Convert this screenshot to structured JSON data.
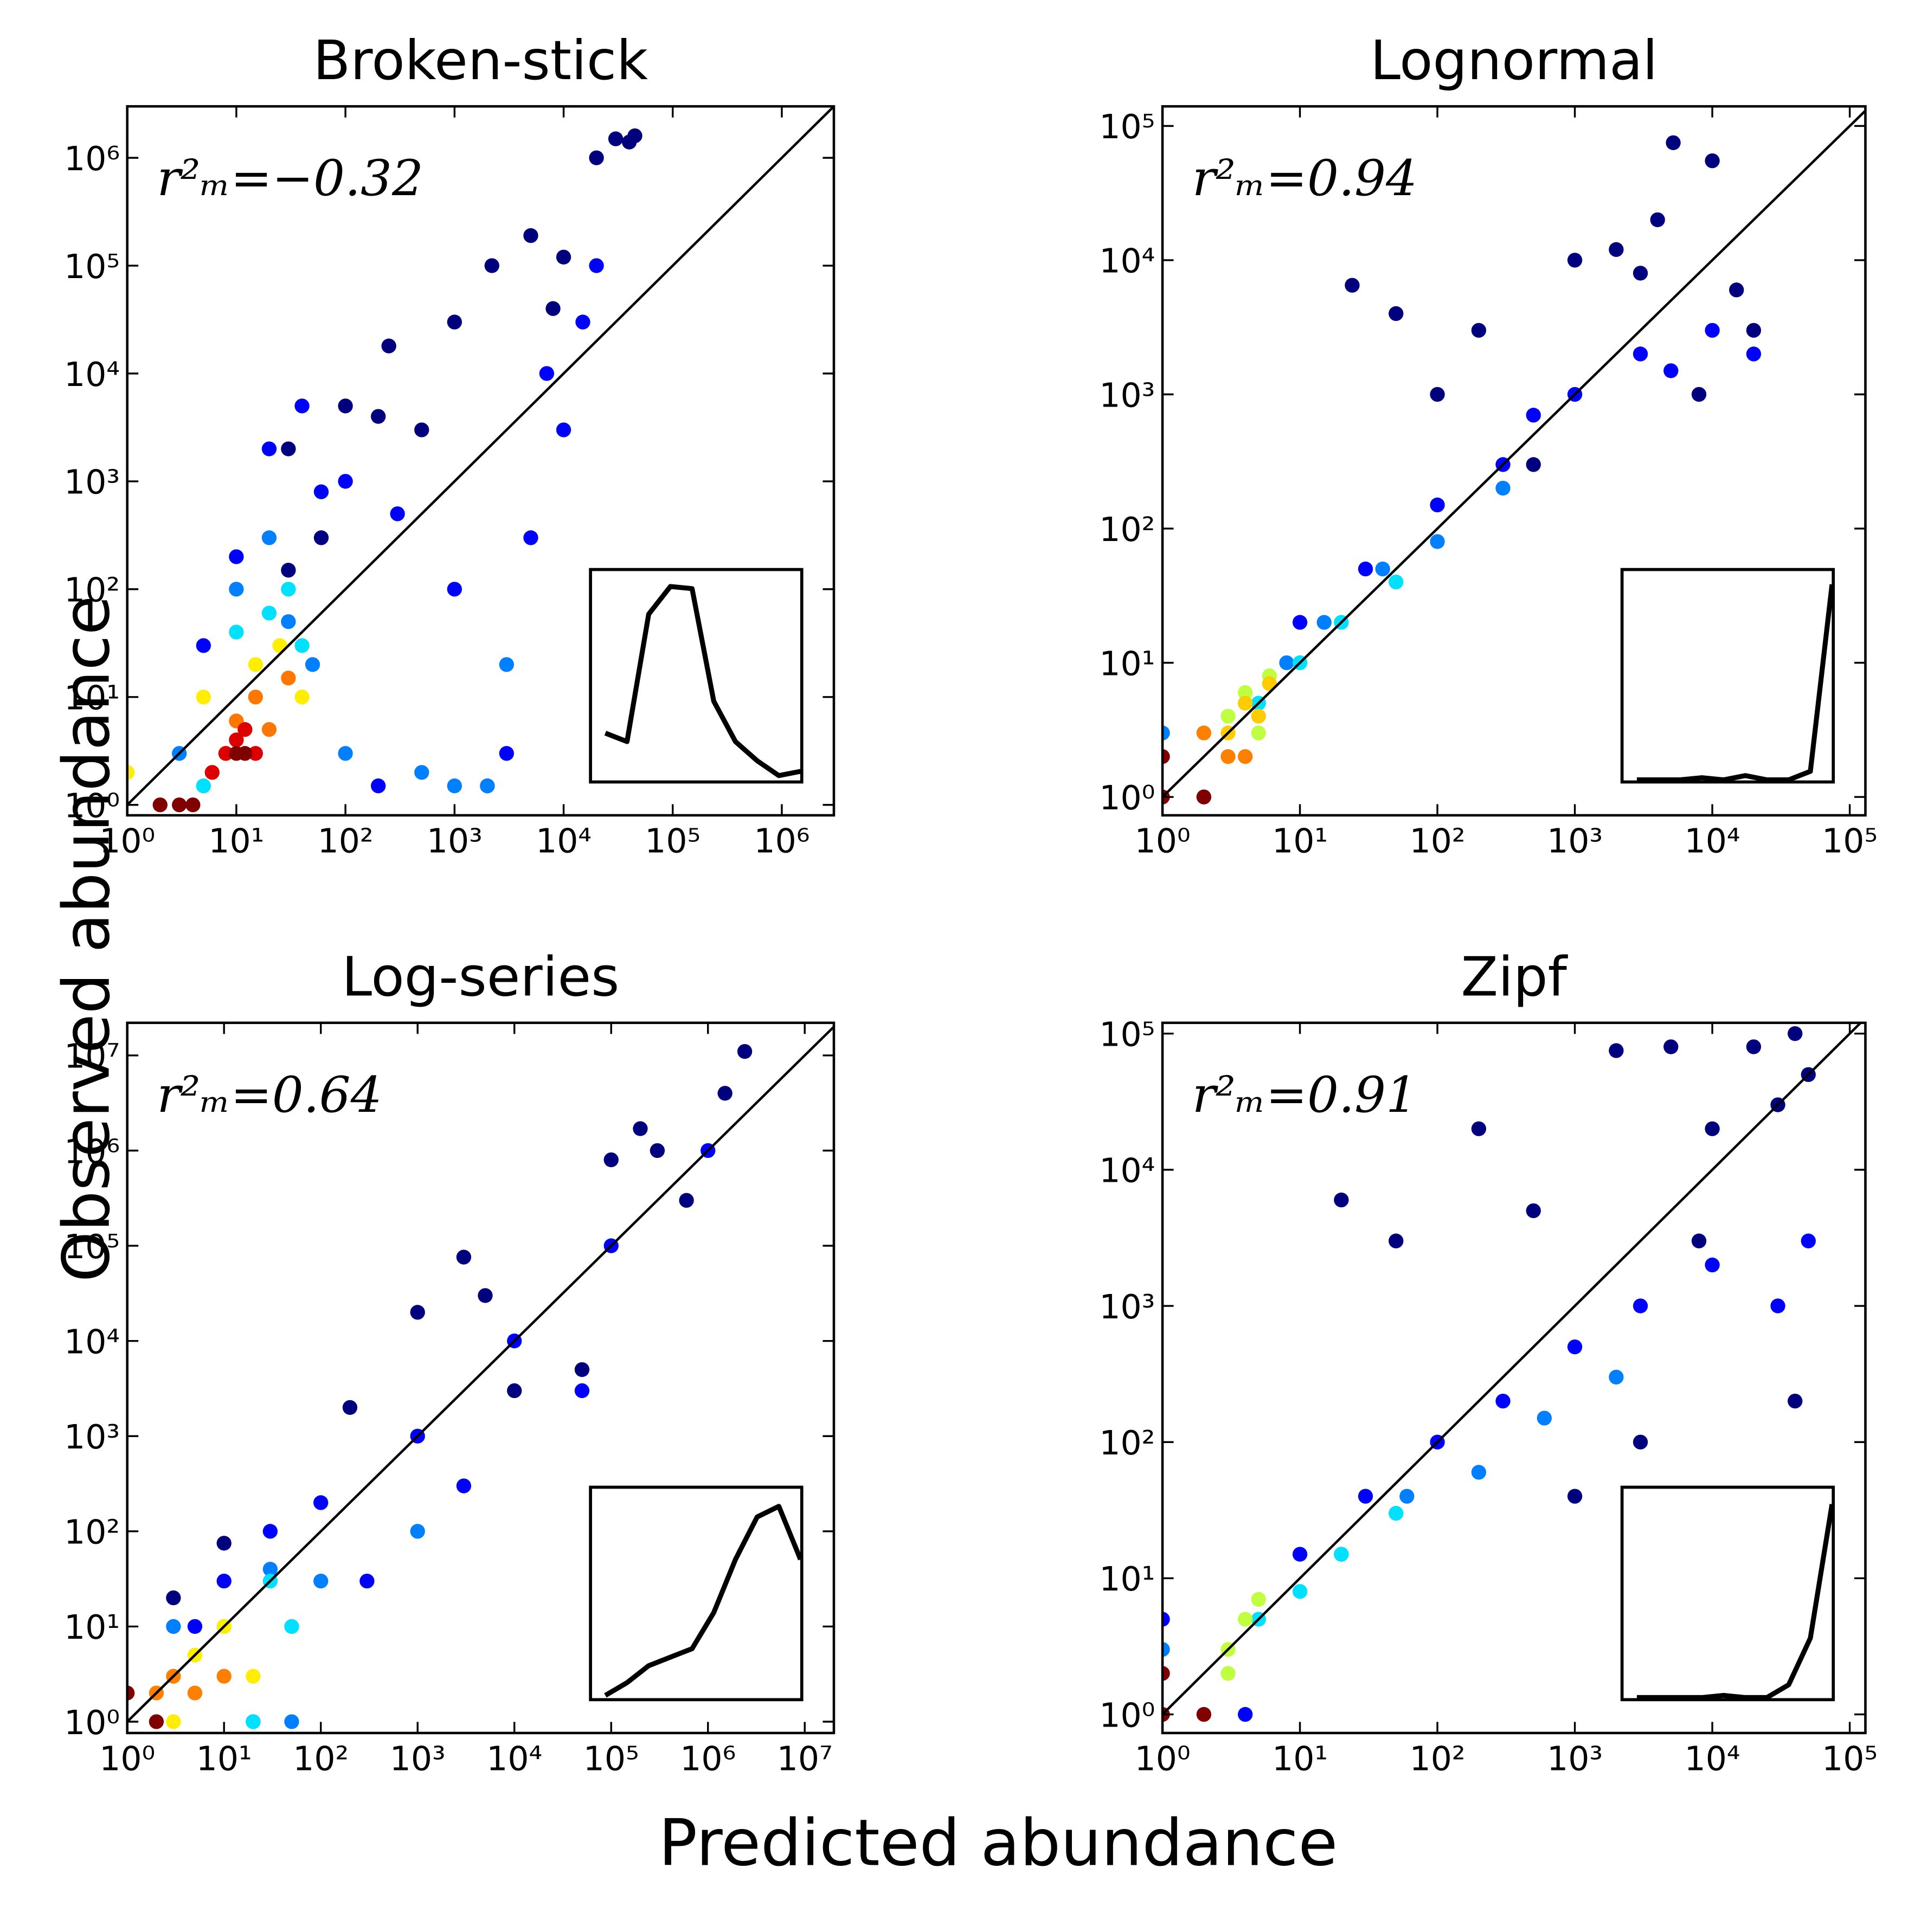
{
  "xlabel": "Predicted abundance",
  "ylabel": "Observed abundance",
  "chart_data": [
    {
      "type": "scatter",
      "title": "Broken-stick",
      "annotation": "r²ₘ=−0.32",
      "log_x": true,
      "log_y": true,
      "xlim": [
        1,
        3000000
      ],
      "ylim": [
        0.8,
        3000000
      ],
      "xticks": [
        {
          "value": 1,
          "label": "10⁰"
        },
        {
          "value": 10,
          "label": "10¹"
        },
        {
          "value": 100,
          "label": "10²"
        },
        {
          "value": 1000,
          "label": "10³"
        },
        {
          "value": 10000,
          "label": "10⁴"
        },
        {
          "value": 100000,
          "label": "10⁵"
        },
        {
          "value": 1000000,
          "label": "10⁶"
        }
      ],
      "yticks": [
        {
          "value": 1,
          "label": "10⁰"
        },
        {
          "value": 10,
          "label": "10¹"
        },
        {
          "value": 100,
          "label": "10²"
        },
        {
          "value": 1000,
          "label": "10³"
        },
        {
          "value": 10000,
          "label": "10⁴"
        },
        {
          "value": 100000,
          "label": "10⁵"
        },
        {
          "value": 1000000,
          "label": "10⁶"
        }
      ],
      "series": [
        {
          "color": "#00007f",
          "x": [
            30,
            100,
            250,
            500,
            1000,
            2200,
            5000,
            10000,
            20000,
            30000,
            40000,
            45000,
            30,
            60,
            200,
            8000
          ],
          "values": [
            2000,
            5000,
            18000,
            3000,
            30000,
            100000,
            190000,
            120000,
            1000000,
            1500000,
            1400000,
            1600000,
            150,
            300,
            4000,
            40000
          ]
        },
        {
          "color": "#0000ff",
          "x": [
            5,
            10,
            20,
            40,
            100,
            300,
            1000,
            3000,
            5000,
            10000,
            15000,
            20000,
            200,
            2000,
            60,
            7000
          ],
          "values": [
            30,
            200,
            2000,
            5000,
            1000,
            500,
            100,
            3,
            300,
            3000,
            30000,
            100000,
            1.5,
            1.5,
            800,
            10000
          ]
        },
        {
          "color": "#0080ff",
          "x": [
            10,
            20,
            30,
            50,
            3,
            1000,
            2000,
            100,
            500,
            3000
          ],
          "values": [
            100,
            300,
            50,
            20,
            3,
            1.5,
            1.5,
            3,
            2,
            20
          ]
        },
        {
          "color": "#00e0ff",
          "x": [
            20,
            30,
            40,
            10,
            5
          ],
          "values": [
            60,
            100,
            30,
            40,
            1.5
          ]
        },
        {
          "color": "#ffee00",
          "x": [
            15,
            25,
            40,
            1,
            5
          ],
          "values": [
            20,
            30,
            10,
            2,
            10
          ]
        },
        {
          "color": "#ff7700",
          "x": [
            10,
            15,
            20,
            8,
            30
          ],
          "values": [
            6,
            10,
            5,
            3,
            15
          ]
        },
        {
          "color": "#dd0000",
          "x": [
            8,
            10,
            12,
            15,
            6
          ],
          "values": [
            3,
            4,
            5,
            3,
            2
          ]
        },
        {
          "color": "#800000",
          "x": [
            10,
            12,
            2,
            3,
            4
          ],
          "values": [
            3,
            3,
            1,
            1,
            1
          ]
        }
      ],
      "inset": {
        "values": [
          23,
          19,
          79,
          92,
          91,
          38,
          19,
          10,
          3,
          5
        ],
        "ylim": [
          0,
          100
        ]
      }
    },
    {
      "type": "scatter",
      "title": "Lognormal",
      "annotation": "r²ₘ=0.94",
      "log_x": true,
      "log_y": true,
      "xlim": [
        1,
        130000
      ],
      "ylim": [
        0.73,
        140000
      ],
      "xticks": [
        {
          "value": 1,
          "label": "10⁰"
        },
        {
          "value": 10,
          "label": "10¹"
        },
        {
          "value": 100,
          "label": "10²"
        },
        {
          "value": 1000,
          "label": "10³"
        },
        {
          "value": 10000,
          "label": "10⁴"
        },
        {
          "value": 100000,
          "label": "10⁵"
        }
      ],
      "yticks": [
        {
          "value": 1,
          "label": "10⁰"
        },
        {
          "value": 10,
          "label": "10¹"
        },
        {
          "value": 100,
          "label": "10²"
        },
        {
          "value": 1000,
          "label": "10³"
        },
        {
          "value": 10000,
          "label": "10⁴"
        },
        {
          "value": 100000,
          "label": "10⁵"
        }
      ],
      "series": [
        {
          "color": "#00007f",
          "x": [
            24,
            50,
            200,
            1000,
            2000,
            5200,
            10000,
            20000,
            3000,
            8000,
            500,
            100,
            15000,
            4000
          ],
          "values": [
            6500,
            4000,
            3000,
            10000,
            12000,
            75000,
            55000,
            3000,
            8000,
            1000,
            300,
            1000,
            6000,
            20000
          ]
        },
        {
          "color": "#0000ff",
          "x": [
            10,
            30,
            100,
            300,
            1000,
            3000,
            10000,
            20000,
            500,
            5000
          ],
          "values": [
            20,
            50,
            150,
            300,
            1000,
            2000,
            3000,
            2000,
            700,
            1500
          ]
        },
        {
          "color": "#0080ff",
          "x": [
            8,
            15,
            40,
            100,
            300,
            1,
            2
          ],
          "values": [
            10,
            20,
            50,
            80,
            200,
            3,
            1
          ]
        },
        {
          "color": "#00e0ff",
          "x": [
            5,
            10,
            20,
            50
          ],
          "values": [
            5,
            10,
            20,
            40
          ]
        },
        {
          "color": "#c0ff40",
          "x": [
            3,
            4,
            6,
            5
          ],
          "values": [
            4,
            6,
            8,
            3
          ]
        },
        {
          "color": "#ffcc00",
          "x": [
            3,
            4,
            5,
            6
          ],
          "values": [
            3,
            5,
            4,
            7
          ]
        },
        {
          "color": "#ff8000",
          "x": [
            3,
            4,
            2
          ],
          "values": [
            2,
            2,
            3
          ]
        },
        {
          "color": "#800000",
          "x": [
            2,
            1,
            1
          ],
          "values": [
            1,
            2,
            1
          ]
        }
      ],
      "inset": {
        "values": [
          1,
          1,
          1,
          2,
          1,
          3,
          1,
          1,
          5,
          93
        ],
        "ylim": [
          0,
          100
        ]
      }
    },
    {
      "type": "scatter",
      "title": "Log-series",
      "annotation": "r²ₘ=0.64",
      "log_x": true,
      "log_y": true,
      "xlim": [
        1,
        20000000
      ],
      "ylim": [
        0.76,
        22000000
      ],
      "xticks": [
        {
          "value": 1,
          "label": "10⁰"
        },
        {
          "value": 10,
          "label": "10¹"
        },
        {
          "value": 100,
          "label": "10²"
        },
        {
          "value": 1000,
          "label": "10³"
        },
        {
          "value": 10000,
          "label": "10⁴"
        },
        {
          "value": 100000,
          "label": "10⁵"
        },
        {
          "value": 1000000,
          "label": "10⁶"
        },
        {
          "value": 10000000,
          "label": "10⁷"
        }
      ],
      "yticks": [
        {
          "value": 1,
          "label": "10⁰"
        },
        {
          "value": 10,
          "label": "10¹"
        },
        {
          "value": 100,
          "label": "10²"
        },
        {
          "value": 1000,
          "label": "10³"
        },
        {
          "value": 10000,
          "label": "10⁴"
        },
        {
          "value": 100000,
          "label": "10⁵"
        },
        {
          "value": 1000000,
          "label": "10⁶"
        },
        {
          "value": 10000000,
          "label": "10⁷"
        }
      ],
      "series": [
        {
          "color": "#00007f",
          "x": [
            2400000,
            1500000,
            200000,
            300000,
            3000,
            1000,
            5000,
            200,
            10,
            3,
            10000,
            50000,
            100000,
            600000
          ],
          "values": [
            11000000,
            4000000,
            1700000,
            1000000,
            76000,
            20000,
            30000,
            2000,
            75,
            20,
            3000,
            5000,
            800000,
            300000
          ]
        },
        {
          "color": "#0000ff",
          "x": [
            100,
            1000,
            10000,
            100000,
            1000000,
            30,
            10,
            300,
            3000,
            50000,
            5,
            20
          ],
          "values": [
            200,
            1000,
            10000,
            100000,
            1000000,
            100,
            30,
            30,
            300,
            3000,
            10,
            1
          ]
        },
        {
          "color": "#0080ff",
          "x": [
            30,
            100,
            1000,
            50,
            3
          ],
          "values": [
            40,
            30,
            100,
            1,
            10
          ]
        },
        {
          "color": "#00e0ff",
          "x": [
            10,
            30,
            3,
            50,
            20
          ],
          "values": [
            10,
            30,
            3,
            10,
            1
          ]
        },
        {
          "color": "#ffee00",
          "x": [
            5,
            10,
            20,
            3
          ],
          "values": [
            5,
            10,
            3,
            1
          ]
        },
        {
          "color": "#ff8000",
          "x": [
            2,
            3,
            10,
            5
          ],
          "values": [
            2,
            3,
            3,
            2
          ]
        },
        {
          "color": "#800000",
          "x": [
            1,
            2
          ],
          "values": [
            2,
            1
          ]
        }
      ],
      "inset": {
        "values": [
          2,
          8,
          16,
          20,
          24,
          41,
          66,
          86,
          91,
          66
        ],
        "ylim": [
          0,
          100
        ]
      }
    },
    {
      "type": "scatter",
      "title": "Zipf",
      "annotation": "r²ₘ=0.91",
      "log_x": true,
      "log_y": true,
      "xlim": [
        1,
        130000
      ],
      "ylim": [
        0.73,
        120000
      ],
      "xticks": [
        {
          "value": 1,
          "label": "10⁰"
        },
        {
          "value": 10,
          "label": "10¹"
        },
        {
          "value": 100,
          "label": "10²"
        },
        {
          "value": 1000,
          "label": "10³"
        },
        {
          "value": 10000,
          "label": "10⁴"
        },
        {
          "value": 100000,
          "label": "10⁵"
        }
      ],
      "yticks": [
        {
          "value": 1,
          "label": "10⁰"
        },
        {
          "value": 10,
          "label": "10¹"
        },
        {
          "value": 100,
          "label": "10²"
        },
        {
          "value": 1000,
          "label": "10³"
        },
        {
          "value": 10000,
          "label": "10⁴"
        },
        {
          "value": 100000,
          "label": "10⁵"
        }
      ],
      "series": [
        {
          "color": "#00007f",
          "x": [
            5000,
            20000,
            30000,
            50000,
            40000,
            10000,
            20,
            50,
            200,
            1000,
            3000,
            40000,
            2000,
            500,
            8000
          ],
          "values": [
            80000,
            80000,
            30000,
            50000,
            100000,
            20000,
            6000,
            3000,
            20000,
            40,
            100,
            200,
            75000,
            5000,
            3000
          ]
        },
        {
          "color": "#0000ff",
          "x": [
            10,
            30,
            100,
            300,
            1000,
            3000,
            10000,
            30000,
            50000,
            1,
            4
          ],
          "values": [
            15,
            40,
            100,
            200,
            500,
            1000,
            2000,
            1000,
            3000,
            5,
            1
          ]
        },
        {
          "color": "#0080ff",
          "x": [
            20,
            60,
            200,
            600,
            2000,
            1
          ],
          "values": [
            15,
            40,
            60,
            150,
            300,
            3
          ]
        },
        {
          "color": "#00e0ff",
          "x": [
            5,
            10,
            20,
            50
          ],
          "values": [
            5,
            8,
            15,
            30
          ]
        },
        {
          "color": "#c0ff40",
          "x": [
            3,
            4,
            5,
            3
          ],
          "values": [
            3,
            5,
            7,
            2
          ]
        },
        {
          "color": "#800000",
          "x": [
            1,
            2,
            1
          ],
          "values": [
            2,
            1,
            1
          ]
        }
      ],
      "inset": {
        "values": [
          1,
          1,
          1,
          1,
          2,
          1,
          1,
          7,
          29,
          92
        ],
        "ylim": [
          0,
          100
        ]
      }
    }
  ]
}
